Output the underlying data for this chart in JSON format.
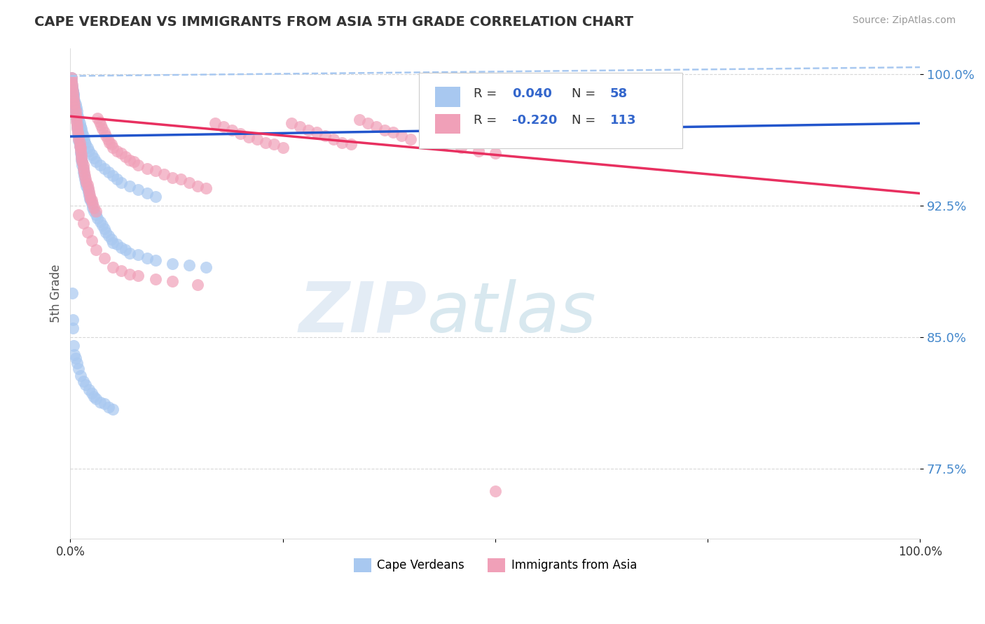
{
  "title": "CAPE VERDEAN VS IMMIGRANTS FROM ASIA 5TH GRADE CORRELATION CHART",
  "source": "Source: ZipAtlas.com",
  "ylabel": "5th Grade",
  "xlim": [
    0.0,
    1.0
  ],
  "ylim": [
    0.735,
    1.015
  ],
  "yticks": [
    0.775,
    0.85,
    0.925,
    1.0
  ],
  "ytick_labels": [
    "77.5%",
    "85.0%",
    "92.5%",
    "100.0%"
  ],
  "legend_label1": "Cape Verdeans",
  "legend_label2": "Immigrants from Asia",
  "blue_color": "#a8c8f0",
  "pink_color": "#f0a0b8",
  "blue_line_color": "#2255cc",
  "pink_line_color": "#e83060",
  "dashed_line_color": "#a8c8f0",
  "watermark_zip": "ZIP",
  "watermark_atlas": "atlas",
  "background_color": "#ffffff",
  "grid_color": "#d8d8d8",
  "blue_line_x": [
    0.0,
    1.0
  ],
  "blue_line_y": [
    0.9645,
    0.972
  ],
  "pink_line_x": [
    0.0,
    1.0
  ],
  "pink_line_y": [
    0.976,
    0.932
  ],
  "dashed_line_x": [
    0.0,
    1.0
  ],
  "dashed_line_y": [
    0.999,
    1.004
  ],
  "blue_scatter": [
    [
      0.001,
      0.995
    ],
    [
      0.002,
      0.992
    ],
    [
      0.003,
      0.99
    ],
    [
      0.004,
      0.988
    ],
    [
      0.005,
      0.985
    ],
    [
      0.005,
      0.982
    ],
    [
      0.006,
      0.98
    ],
    [
      0.006,
      0.978
    ],
    [
      0.007,
      0.977
    ],
    [
      0.007,
      0.975
    ],
    [
      0.008,
      0.973
    ],
    [
      0.008,
      0.97
    ],
    [
      0.009,
      0.968
    ],
    [
      0.009,
      0.966
    ],
    [
      0.01,
      0.964
    ],
    [
      0.01,
      0.962
    ],
    [
      0.011,
      0.961
    ],
    [
      0.011,
      0.959
    ],
    [
      0.012,
      0.957
    ],
    [
      0.012,
      0.955
    ],
    [
      0.013,
      0.953
    ],
    [
      0.013,
      0.951
    ],
    [
      0.014,
      0.95
    ],
    [
      0.014,
      0.948
    ],
    [
      0.015,
      0.946
    ],
    [
      0.015,
      0.944
    ],
    [
      0.016,
      0.942
    ],
    [
      0.017,
      0.94
    ],
    [
      0.018,
      0.938
    ],
    [
      0.019,
      0.936
    ],
    [
      0.02,
      0.935
    ],
    [
      0.021,
      0.933
    ],
    [
      0.022,
      0.931
    ],
    [
      0.023,
      0.929
    ],
    [
      0.024,
      0.928
    ],
    [
      0.025,
      0.926
    ],
    [
      0.026,
      0.924
    ],
    [
      0.028,
      0.922
    ],
    [
      0.03,
      0.92
    ],
    [
      0.032,
      0.918
    ],
    [
      0.035,
      0.916
    ],
    [
      0.038,
      0.914
    ],
    [
      0.04,
      0.912
    ],
    [
      0.042,
      0.91
    ],
    [
      0.045,
      0.908
    ],
    [
      0.048,
      0.906
    ],
    [
      0.05,
      0.904
    ],
    [
      0.055,
      0.903
    ],
    [
      0.06,
      0.901
    ],
    [
      0.065,
      0.9
    ],
    [
      0.07,
      0.898
    ],
    [
      0.08,
      0.897
    ],
    [
      0.09,
      0.895
    ],
    [
      0.1,
      0.894
    ],
    [
      0.12,
      0.892
    ],
    [
      0.14,
      0.891
    ],
    [
      0.16,
      0.89
    ],
    [
      0.002,
      0.875
    ],
    [
      0.003,
      0.86
    ],
    [
      0.004,
      0.845
    ],
    [
      0.005,
      0.84
    ],
    [
      0.003,
      0.855
    ],
    [
      0.006,
      0.838
    ],
    [
      0.008,
      0.835
    ],
    [
      0.01,
      0.832
    ],
    [
      0.012,
      0.828
    ],
    [
      0.015,
      0.825
    ],
    [
      0.018,
      0.823
    ],
    [
      0.022,
      0.82
    ],
    [
      0.025,
      0.818
    ],
    [
      0.028,
      0.816
    ],
    [
      0.03,
      0.815
    ],
    [
      0.035,
      0.813
    ],
    [
      0.04,
      0.812
    ],
    [
      0.045,
      0.81
    ],
    [
      0.05,
      0.809
    ],
    [
      0.001,
      0.998
    ],
    [
      0.001,
      0.996
    ],
    [
      0.002,
      0.993
    ],
    [
      0.003,
      0.991
    ],
    [
      0.004,
      0.989
    ],
    [
      0.004,
      0.987
    ],
    [
      0.005,
      0.984
    ],
    [
      0.006,
      0.983
    ],
    [
      0.007,
      0.981
    ],
    [
      0.008,
      0.979
    ],
    [
      0.009,
      0.976
    ],
    [
      0.01,
      0.974
    ],
    [
      0.011,
      0.972
    ],
    [
      0.012,
      0.97
    ],
    [
      0.013,
      0.969
    ],
    [
      0.014,
      0.967
    ],
    [
      0.015,
      0.965
    ],
    [
      0.016,
      0.963
    ],
    [
      0.017,
      0.961
    ],
    [
      0.018,
      0.96
    ],
    [
      0.02,
      0.958
    ],
    [
      0.022,
      0.956
    ],
    [
      0.025,
      0.954
    ],
    [
      0.028,
      0.952
    ],
    [
      0.03,
      0.95
    ],
    [
      0.035,
      0.948
    ],
    [
      0.04,
      0.946
    ],
    [
      0.045,
      0.944
    ],
    [
      0.05,
      0.942
    ],
    [
      0.055,
      0.94
    ],
    [
      0.06,
      0.938
    ],
    [
      0.07,
      0.936
    ],
    [
      0.08,
      0.934
    ],
    [
      0.09,
      0.932
    ],
    [
      0.1,
      0.93
    ]
  ],
  "pink_scatter": [
    [
      0.001,
      0.998
    ],
    [
      0.001,
      0.996
    ],
    [
      0.002,
      0.994
    ],
    [
      0.002,
      0.992
    ],
    [
      0.003,
      0.99
    ],
    [
      0.003,
      0.988
    ],
    [
      0.004,
      0.986
    ],
    [
      0.004,
      0.984
    ],
    [
      0.005,
      0.983
    ],
    [
      0.005,
      0.981
    ],
    [
      0.006,
      0.979
    ],
    [
      0.006,
      0.977
    ],
    [
      0.007,
      0.975
    ],
    [
      0.007,
      0.973
    ],
    [
      0.008,
      0.971
    ],
    [
      0.008,
      0.969
    ],
    [
      0.009,
      0.967
    ],
    [
      0.01,
      0.965
    ],
    [
      0.01,
      0.963
    ],
    [
      0.011,
      0.961
    ],
    [
      0.011,
      0.959
    ],
    [
      0.012,
      0.958
    ],
    [
      0.012,
      0.956
    ],
    [
      0.013,
      0.954
    ],
    [
      0.013,
      0.952
    ],
    [
      0.014,
      0.95
    ],
    [
      0.015,
      0.948
    ],
    [
      0.015,
      0.946
    ],
    [
      0.016,
      0.944
    ],
    [
      0.017,
      0.942
    ],
    [
      0.018,
      0.94
    ],
    [
      0.019,
      0.938
    ],
    [
      0.02,
      0.937
    ],
    [
      0.021,
      0.935
    ],
    [
      0.022,
      0.933
    ],
    [
      0.023,
      0.931
    ],
    [
      0.024,
      0.929
    ],
    [
      0.025,
      0.928
    ],
    [
      0.026,
      0.926
    ],
    [
      0.028,
      0.924
    ],
    [
      0.03,
      0.922
    ],
    [
      0.032,
      0.975
    ],
    [
      0.034,
      0.973
    ],
    [
      0.036,
      0.971
    ],
    [
      0.038,
      0.969
    ],
    [
      0.04,
      0.967
    ],
    [
      0.042,
      0.965
    ],
    [
      0.044,
      0.963
    ],
    [
      0.046,
      0.961
    ],
    [
      0.048,
      0.96
    ],
    [
      0.05,
      0.958
    ],
    [
      0.055,
      0.956
    ],
    [
      0.06,
      0.955
    ],
    [
      0.065,
      0.953
    ],
    [
      0.07,
      0.951
    ],
    [
      0.075,
      0.95
    ],
    [
      0.08,
      0.948
    ],
    [
      0.09,
      0.946
    ],
    [
      0.1,
      0.945
    ],
    [
      0.11,
      0.943
    ],
    [
      0.12,
      0.941
    ],
    [
      0.13,
      0.94
    ],
    [
      0.14,
      0.938
    ],
    [
      0.15,
      0.936
    ],
    [
      0.16,
      0.935
    ],
    [
      0.17,
      0.972
    ],
    [
      0.18,
      0.97
    ],
    [
      0.19,
      0.968
    ],
    [
      0.2,
      0.966
    ],
    [
      0.21,
      0.964
    ],
    [
      0.22,
      0.963
    ],
    [
      0.23,
      0.961
    ],
    [
      0.24,
      0.96
    ],
    [
      0.25,
      0.958
    ],
    [
      0.26,
      0.972
    ],
    [
      0.27,
      0.97
    ],
    [
      0.28,
      0.968
    ],
    [
      0.29,
      0.967
    ],
    [
      0.3,
      0.965
    ],
    [
      0.31,
      0.963
    ],
    [
      0.32,
      0.961
    ],
    [
      0.33,
      0.96
    ],
    [
      0.34,
      0.974
    ],
    [
      0.35,
      0.972
    ],
    [
      0.36,
      0.97
    ],
    [
      0.37,
      0.968
    ],
    [
      0.38,
      0.967
    ],
    [
      0.39,
      0.965
    ],
    [
      0.4,
      0.963
    ],
    [
      0.42,
      0.961
    ],
    [
      0.44,
      0.96
    ],
    [
      0.46,
      0.958
    ],
    [
      0.48,
      0.956
    ],
    [
      0.5,
      0.955
    ],
    [
      0.01,
      0.92
    ],
    [
      0.015,
      0.915
    ],
    [
      0.02,
      0.91
    ],
    [
      0.025,
      0.905
    ],
    [
      0.03,
      0.9
    ],
    [
      0.04,
      0.895
    ],
    [
      0.05,
      0.89
    ],
    [
      0.06,
      0.888
    ],
    [
      0.07,
      0.886
    ],
    [
      0.08,
      0.885
    ],
    [
      0.1,
      0.883
    ],
    [
      0.12,
      0.882
    ],
    [
      0.15,
      0.88
    ],
    [
      0.5,
      0.762
    ]
  ]
}
